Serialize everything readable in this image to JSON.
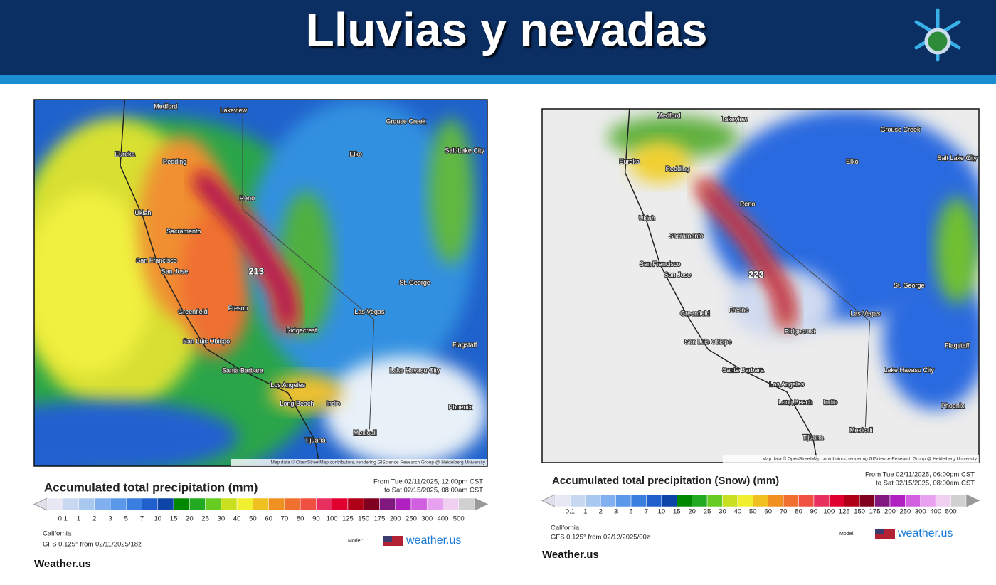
{
  "header": {
    "title": "Lluvias y nevadas"
  },
  "panels": [
    {
      "map_labels": [
        "Medford",
        "Lakeview",
        "Eureka",
        "Redding",
        "Reno",
        "Elko",
        "Grouse Creek",
        "Salt Lake City",
        "Ukiah",
        "Sacramento",
        "San Francisco",
        "San Jose",
        "Fresno",
        "Greenfield",
        "St. George",
        "Las Vegas",
        "Ridgecrest",
        "San Luis Obispo",
        "Santa Barbara",
        "Los Angeles",
        "Long Beach",
        "Lake Havasu City",
        "Indio",
        "Phoenix",
        "Flagstaff",
        "Tijuana",
        "Mexicali"
      ],
      "peak": "213",
      "attribution": "Map data © OpenStreetMap contributors, rendering GIScience Research Group @ Heidelberg University",
      "legend_title": "Accumulated total precipitation (mm)",
      "from": "From Tue 02/11/2025, 12:00pm CST",
      "to": "to Sat 02/15/2025, 08:00am CST",
      "scale": [
        "0.1",
        "1",
        "2",
        "3",
        "5",
        "7",
        "10",
        "15",
        "20",
        "25",
        "30",
        "40",
        "50",
        "60",
        "70",
        "80",
        "90",
        "100",
        "125",
        "150",
        "175",
        "200",
        "250",
        "300",
        "400",
        "500"
      ],
      "region": "California",
      "model_run": "GFS 0.125° from  02/11/2025/18z",
      "model_label": "Model:",
      "brand": "weather.us",
      "footer": "Weather.us"
    },
    {
      "map_labels": [
        "Medford",
        "Lakeview",
        "Eureka",
        "Redding",
        "Reno",
        "Elko",
        "Grouse Creek",
        "Salt Lake City",
        "Ukiah",
        "Sacramento",
        "San Francisco",
        "San Jose",
        "Fresno",
        "Greenfield",
        "St. George",
        "Las Vegas",
        "Ridgecrest",
        "San Luis Obispo",
        "Santa Barbara",
        "Los Angeles",
        "Long Beach",
        "Lake Havasu City",
        "Indio",
        "Phoenix",
        "Flagstaff",
        "Tijuana",
        "Mexicali"
      ],
      "peak": "223",
      "attribution": "Map data © OpenStreetMap contributors, rendering GIScience Research Group @ Heidelberg University",
      "legend_title": "Accumulated total precipitation (Snow) (mm)",
      "from": "From Tue 02/11/2025, 06:00pm CST",
      "to": "to Sat 02/15/2025, 08:00am CST",
      "scale": [
        "0.1",
        "1",
        "2",
        "3",
        "5",
        "7",
        "10",
        "15",
        "20",
        "25",
        "30",
        "40",
        "50",
        "60",
        "70",
        "80",
        "90",
        "100",
        "125",
        "150",
        "175",
        "200",
        "250",
        "300",
        "400",
        "500"
      ],
      "region": "California",
      "model_run": "GFS 0.125° from  02/12/2025/00z",
      "model_label": "Model:",
      "brand": "weather.us",
      "footer": "Weather.us"
    }
  ]
}
